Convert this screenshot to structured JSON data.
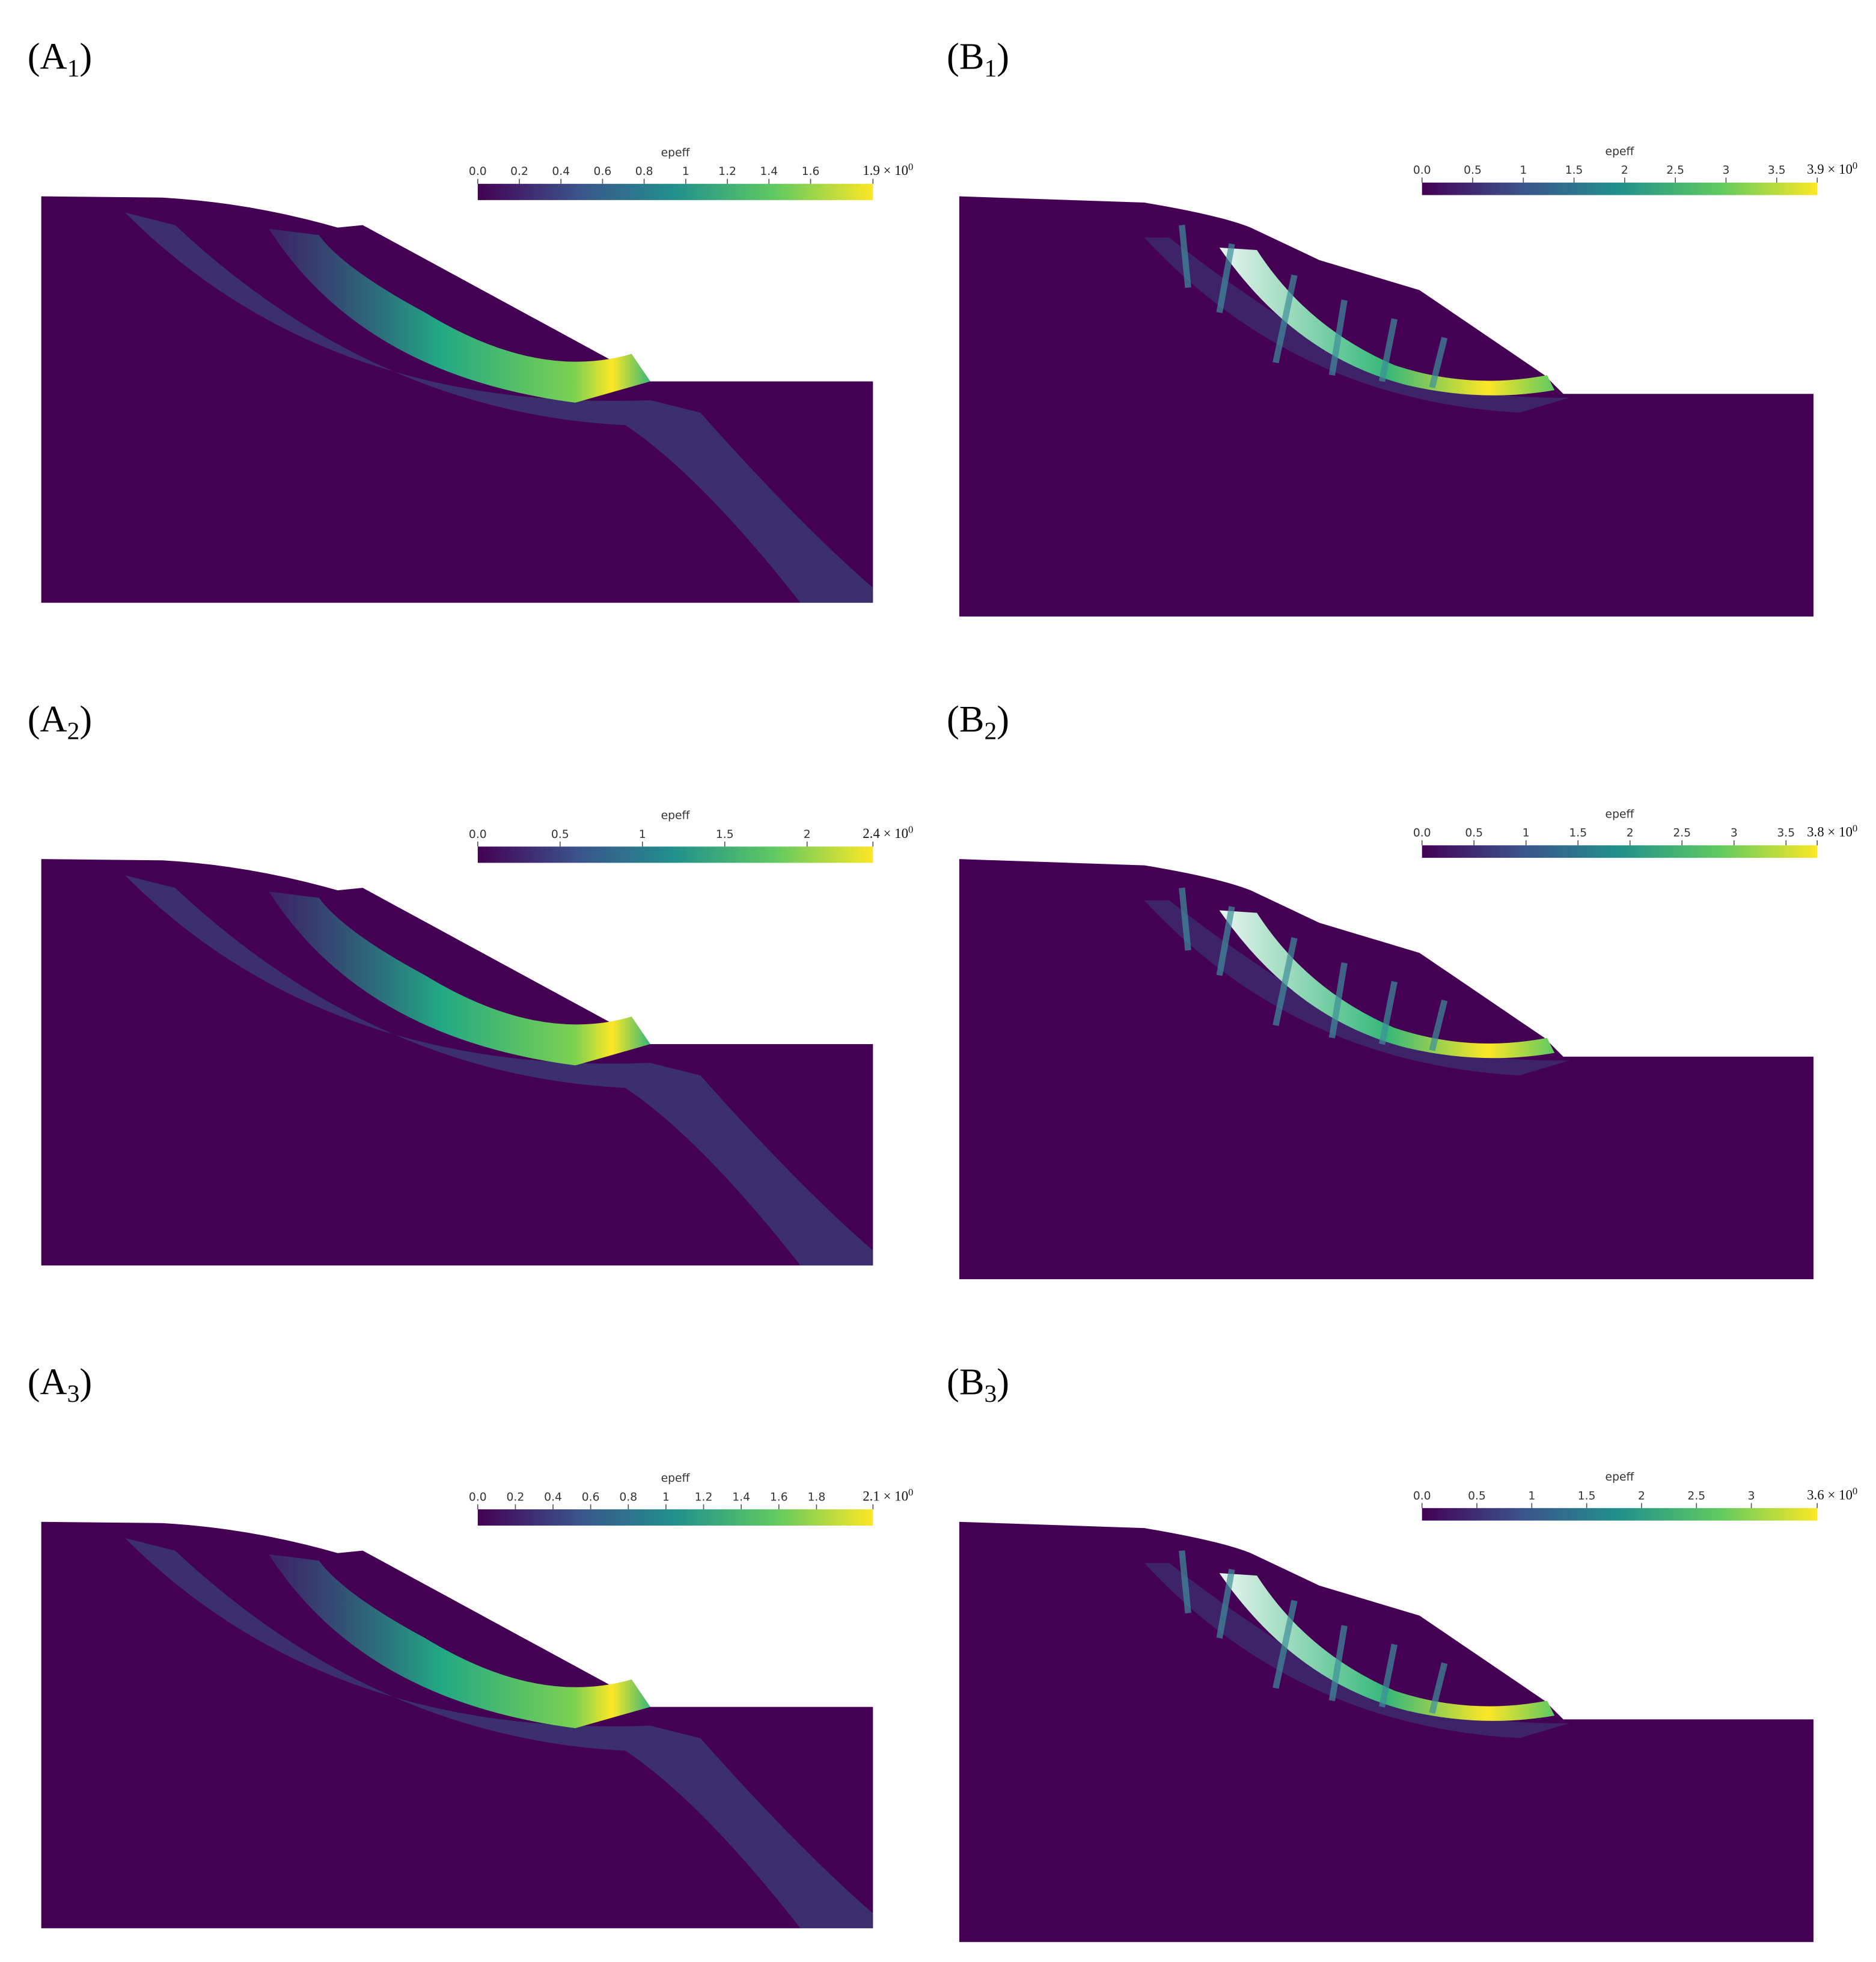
{
  "panels": [
    {
      "label": {
        "open": "(A",
        "sub": "1",
        "close": ")"
      },
      "colorbar": {
        "title": "epeff",
        "range": [
          0,
          1.9
        ],
        "ticks": [
          {
            "value": 0,
            "label": "0.0"
          },
          0.2,
          0.4,
          0.6,
          0.8,
          1,
          1.2,
          1.4,
          1.6
        ],
        "max_label": {
          "mantissa": "1.9 × 10",
          "exponent": "0"
        }
      }
    },
    {
      "label": {
        "open": "(B",
        "sub": "1",
        "close": ")"
      },
      "colorbar": {
        "title": "epeff",
        "range": [
          0,
          3.9
        ],
        "ticks": [
          {
            "value": 0,
            "label": "0.0"
          },
          0.5,
          1,
          1.5,
          2,
          2.5,
          3,
          3.5
        ],
        "max_label": {
          "mantissa": "3.9 × 10",
          "exponent": "0"
        }
      }
    },
    {
      "label": {
        "open": "(A",
        "sub": "2",
        "close": ")"
      },
      "colorbar": {
        "title": "epeff",
        "range": [
          0,
          2.4
        ],
        "ticks": [
          {
            "value": 0,
            "label": "0.0"
          },
          0.5,
          1,
          1.5,
          2
        ],
        "max_label": {
          "mantissa": "2.4 × 10",
          "exponent": "0"
        }
      }
    },
    {
      "label": {
        "open": "(B",
        "sub": "2",
        "close": ")"
      },
      "colorbar": {
        "title": "epeff",
        "range": [
          0,
          3.8
        ],
        "ticks": [
          {
            "value": 0,
            "label": "0.0"
          },
          0.5,
          1,
          1.5,
          2,
          2.5,
          3,
          3.5
        ],
        "max_label": {
          "mantissa": "3.8 × 10",
          "exponent": "0"
        }
      }
    },
    {
      "label": {
        "open": "(A",
        "sub": "3",
        "close": ")"
      },
      "colorbar": {
        "title": "epeff",
        "range": [
          0,
          2.1
        ],
        "ticks": [
          {
            "value": 0,
            "label": "0.0"
          },
          0.2,
          0.4,
          0.6,
          0.8,
          1,
          1.2,
          1.4,
          1.6,
          1.8
        ],
        "max_label": {
          "mantissa": "2.1 × 10",
          "exponent": "0"
        }
      }
    },
    {
      "label": {
        "open": "(B",
        "sub": "3",
        "close": ")"
      },
      "colorbar": {
        "title": "epeff",
        "range": [
          0,
          3.6
        ],
        "ticks": [
          {
            "value": 0,
            "label": "0.0"
          },
          0.5,
          1,
          1.5,
          2,
          2.5,
          3
        ],
        "max_label": {
          "mantissa": "3.6 × 10",
          "exponent": "0"
        }
      }
    }
  ]
}
